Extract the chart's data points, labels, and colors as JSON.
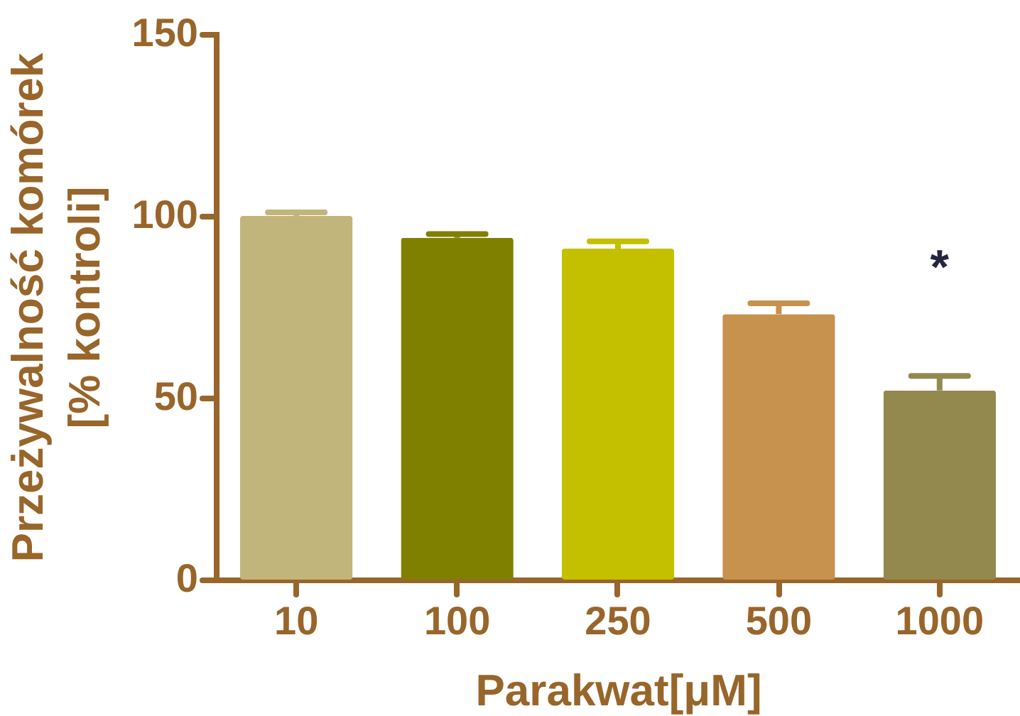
{
  "chart_data": {
    "type": "bar",
    "xlabel": "Parakwat[μM]",
    "ylabel": "Przeżywalność komórek\n[% kontroli]",
    "categories": [
      "10",
      "100",
      "250",
      "500",
      "1000"
    ],
    "values": [
      100,
      94,
      91,
      73,
      52
    ],
    "colors": [
      "#c2b57c",
      "#808000",
      "#c4c000",
      "#c7924e",
      "#93894f"
    ],
    "errors": [
      [
        100,
        101
      ],
      [
        94,
        95
      ],
      [
        91,
        93
      ],
      [
        73,
        76
      ],
      [
        52,
        56
      ]
    ],
    "ylim": [
      0,
      150
    ],
    "yticks": [
      0,
      50,
      100,
      150
    ],
    "grid": false,
    "annotations": [
      "*"
    ]
  }
}
